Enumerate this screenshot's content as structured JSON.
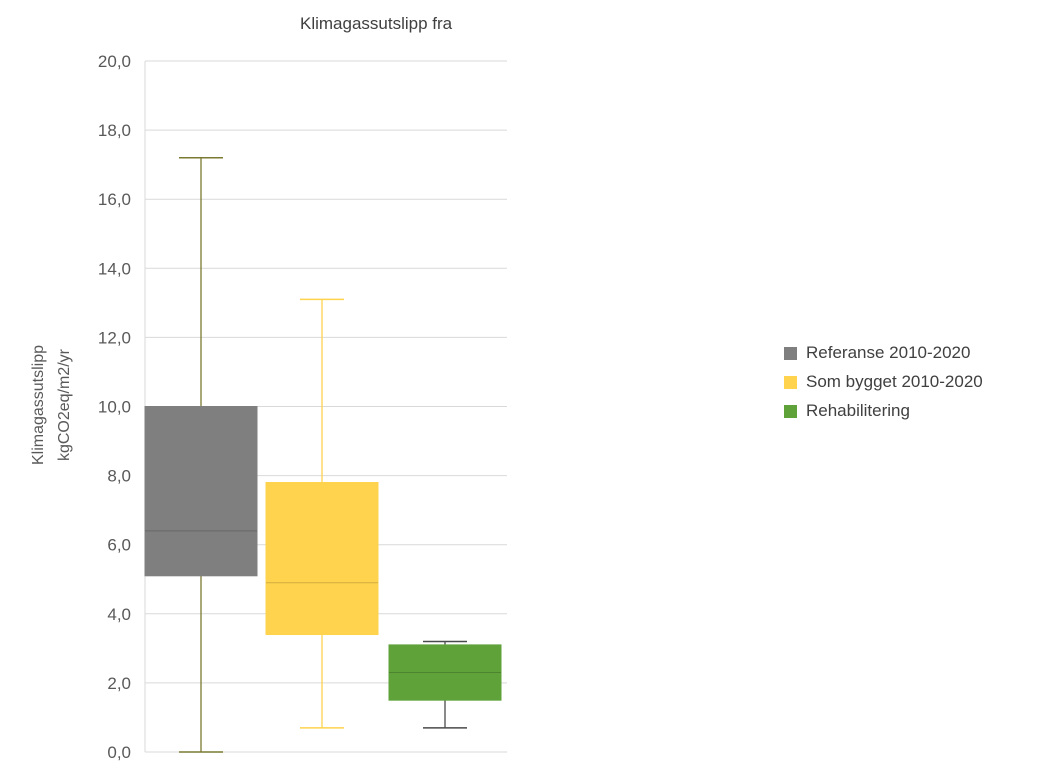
{
  "chart_data": {
    "type": "box",
    "title": "Klimagassutslipp fra",
    "ylabel_lines": [
      "Klimagassutslipp",
      "kgCO2eq/m2/yr"
    ],
    "ylim": [
      0,
      20
    ],
    "y_ticks": [
      "0,0",
      "2,0",
      "4,0",
      "6,0",
      "8,0",
      "10,0",
      "12,0",
      "14,0",
      "16,0",
      "18,0",
      "20,0"
    ],
    "grid": true,
    "legend_position": "right",
    "series": [
      {
        "name": "Referanse 2010-2020",
        "color": "#7f7f7f",
        "whisker_color": "#7a7a30",
        "min": 0.0,
        "q1": 5.1,
        "median": 6.4,
        "q3": 10.0,
        "max": 17.2
      },
      {
        "name": "Som bygget 2010-2020",
        "color": "#ffd34d",
        "whisker_color": "#ffd34d",
        "min": 0.7,
        "q1": 3.4,
        "median": 4.9,
        "q3": 7.8,
        "max": 13.1
      },
      {
        "name": "Rehabilitering",
        "color": "#5fa23a",
        "whisker_color": "#4a4a4a",
        "min": 0.7,
        "q1": 1.5,
        "median": 2.3,
        "q3": 3.1,
        "max": 3.2
      }
    ]
  }
}
